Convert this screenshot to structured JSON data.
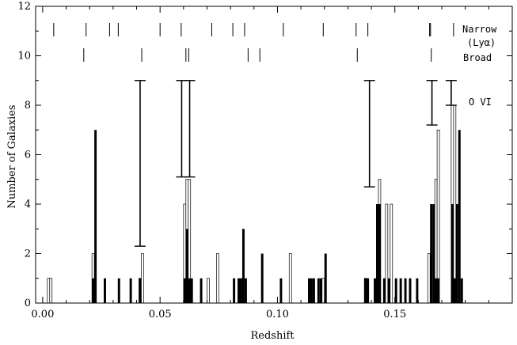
{
  "chart_data": {
    "type": "bar",
    "xlabel": "Redshift",
    "ylabel": "Number of Galaxies",
    "xlim": [
      -0.003,
      0.2
    ],
    "ylim": [
      0,
      12
    ],
    "xticks": [
      0.0,
      0.05,
      0.1,
      0.15
    ],
    "xtick_labels": [
      "0.00",
      "0.05",
      "0.10",
      "0.15"
    ],
    "yticks": [
      0,
      2,
      4,
      6,
      8,
      10,
      12
    ],
    "ytick_labels": [
      "0",
      "2",
      "4",
      "6",
      "8",
      "10",
      "12"
    ],
    "bin_width": 0.001,
    "annotations": {
      "narrow_label": "Narrow",
      "lya_label": "(Lyα)",
      "broad_label": "Broad",
      "ovi_label": "O VI"
    },
    "narrow_line_redshifts": [
      0.0047,
      0.0185,
      0.0285,
      0.0322,
      0.05,
      0.059,
      0.072,
      0.081,
      0.086,
      0.1025,
      0.1195,
      0.1335,
      0.1385,
      0.1648,
      0.1652,
      0.175
    ],
    "broad_line_redshifts": [
      0.0175,
      0.0422,
      0.061,
      0.0622,
      0.0875,
      0.0925,
      0.134,
      0.1655
    ],
    "ovi_redshifts": [
      0.0415,
      0.059,
      0.0625,
      0.139,
      0.1655,
      0.1738
    ],
    "error_bars": [
      {
        "x": 0.0415,
        "lo": 2.3,
        "hi": 9.0
      },
      {
        "x": 0.0592,
        "lo": 5.1,
        "hi": 9.0
      },
      {
        "x": 0.0626,
        "lo": 5.1,
        "hi": 9.0
      },
      {
        "x": 0.1392,
        "lo": 4.7,
        "hi": 9.0
      },
      {
        "x": 0.1658,
        "lo": 7.2,
        "hi": 9.0
      },
      {
        "x": 0.174,
        "lo": 8.0,
        "hi": 9.0
      }
    ],
    "series": [
      {
        "style": "filled",
        "bins": [
          [
            0.0215,
            1
          ],
          [
            0.0225,
            7
          ],
          [
            0.0265,
            1
          ],
          [
            0.0325,
            1
          ],
          [
            0.0375,
            1
          ],
          [
            0.0415,
            1
          ],
          [
            0.0605,
            1
          ],
          [
            0.0615,
            3
          ],
          [
            0.0625,
            1
          ],
          [
            0.0635,
            1
          ],
          [
            0.0675,
            1
          ],
          [
            0.0815,
            1
          ],
          [
            0.0835,
            1
          ],
          [
            0.0845,
            1
          ],
          [
            0.0855,
            3
          ],
          [
            0.0865,
            1
          ],
          [
            0.0935,
            2
          ],
          [
            0.1015,
            1
          ],
          [
            0.1135,
            1
          ],
          [
            0.1145,
            1
          ],
          [
            0.1155,
            1
          ],
          [
            0.1175,
            1
          ],
          [
            0.1185,
            1
          ],
          [
            0.1205,
            2
          ],
          [
            0.1375,
            1
          ],
          [
            0.1385,
            1
          ],
          [
            0.1415,
            1
          ],
          [
            0.1425,
            4
          ],
          [
            0.1435,
            4
          ],
          [
            0.1455,
            1
          ],
          [
            0.1475,
            1
          ],
          [
            0.1505,
            1
          ],
          [
            0.1525,
            1
          ],
          [
            0.1545,
            1
          ],
          [
            0.1565,
            1
          ],
          [
            0.1595,
            1
          ],
          [
            0.1655,
            4
          ],
          [
            0.1665,
            4
          ],
          [
            0.1675,
            1
          ],
          [
            0.1685,
            1
          ],
          [
            0.1745,
            4
          ],
          [
            0.1755,
            1
          ],
          [
            0.1765,
            4
          ],
          [
            0.1775,
            7
          ],
          [
            0.1785,
            1
          ]
        ]
      },
      {
        "style": "open",
        "bins": [
          [
            0.0025,
            1
          ],
          [
            0.0035,
            1
          ],
          [
            0.0215,
            2
          ],
          [
            0.0415,
            1
          ],
          [
            0.0425,
            2
          ],
          [
            0.0605,
            4
          ],
          [
            0.0615,
            5
          ],
          [
            0.0625,
            5
          ],
          [
            0.0705,
            1
          ],
          [
            0.0745,
            2
          ],
          [
            0.1055,
            2
          ],
          [
            0.1195,
            1
          ],
          [
            0.1375,
            1
          ],
          [
            0.1435,
            5
          ],
          [
            0.1465,
            4
          ],
          [
            0.1485,
            4
          ],
          [
            0.1645,
            2
          ],
          [
            0.1675,
            5
          ],
          [
            0.1685,
            7
          ],
          [
            0.1745,
            8
          ],
          [
            0.1755,
            8
          ]
        ]
      }
    ]
  }
}
